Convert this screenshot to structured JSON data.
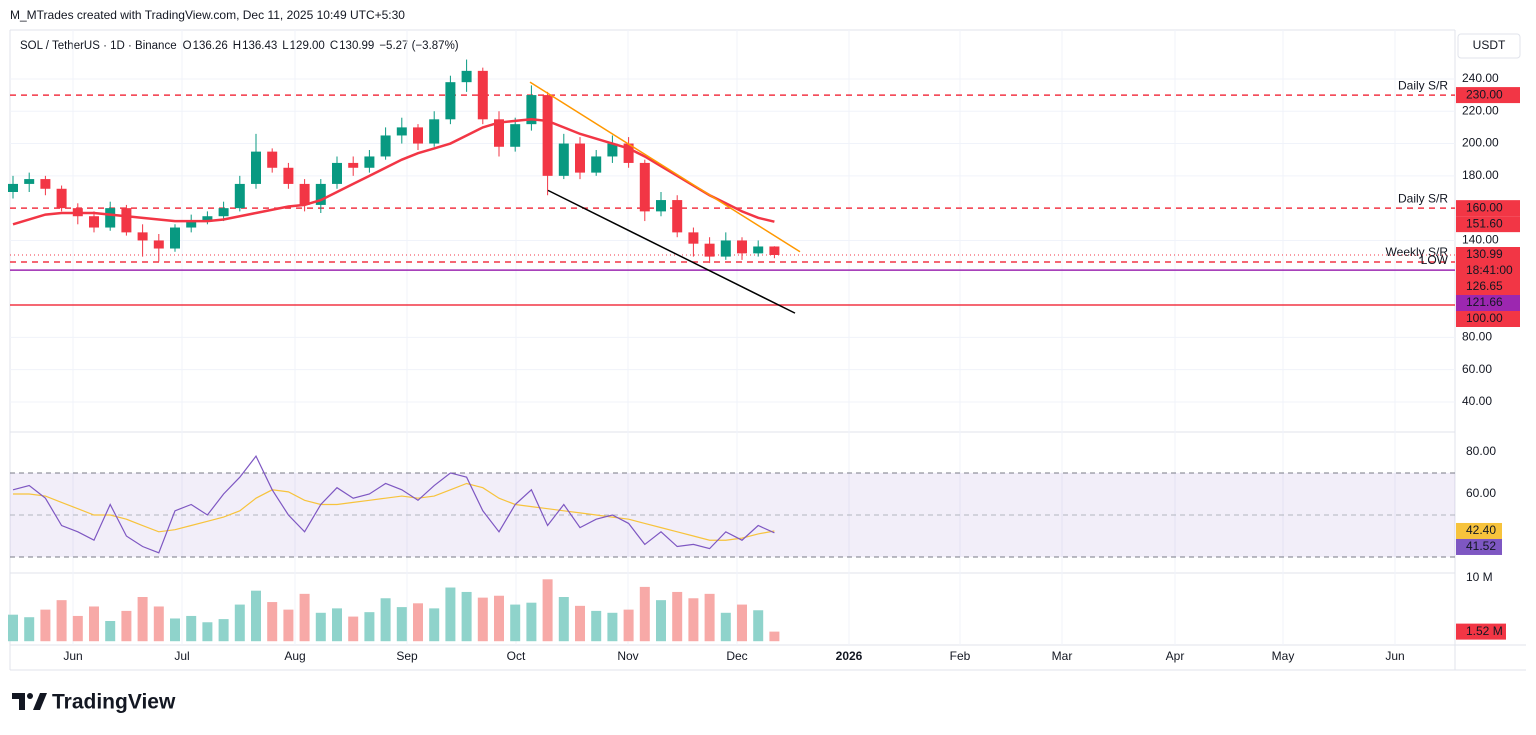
{
  "header": {
    "credit": "M_MTrades created with TradingView.com, Dec 11, 2025 10:49 UTC+5:30"
  },
  "legend": {
    "symbol": "SOL / TetherUS · 1D · Binance",
    "open_label": "O",
    "open": "136.26",
    "high_label": "H",
    "high": "136.43",
    "low_label": "L",
    "low": "129.00",
    "close_label": "C",
    "close": "130.99",
    "change": "−5.27 (−3.87%)"
  },
  "currency": "USDT",
  "footer": {
    "brand": "TradingView"
  },
  "chart_data": {
    "type": "candlestick",
    "up_color": "#089981",
    "down_color": "#f23645",
    "volume_up_color": "#8fd3cb",
    "volume_down_color": "#f7a9a7",
    "ylim": [
      21.4,
      270.3
    ],
    "yticks": [
      {
        "value": 240,
        "label": "240.00"
      },
      {
        "value": 220,
        "label": "220.00"
      },
      {
        "value": 200,
        "label": "200.00"
      },
      {
        "value": 180,
        "label": "180.00"
      },
      {
        "value": 140,
        "label": "140.00"
      },
      {
        "value": 80,
        "label": "80.00"
      },
      {
        "value": 60,
        "label": "60.00"
      },
      {
        "value": 40,
        "label": "40.00"
      }
    ],
    "x_labels": [
      "Jun",
      "Jul",
      "Aug",
      "Sep",
      "Oct",
      "Nov",
      "Dec",
      "2026",
      "Feb",
      "Mar",
      "Apr",
      "May",
      "Jun"
    ],
    "open": [
      170,
      175,
      178,
      172,
      160,
      155,
      148,
      160,
      145,
      140,
      135,
      148,
      152,
      155,
      160,
      175,
      195,
      185,
      175,
      162,
      175,
      188,
      185,
      192,
      205,
      210,
      200,
      215,
      238,
      245,
      215,
      198,
      212,
      230,
      180,
      200,
      182,
      192,
      200,
      188,
      158,
      165,
      145,
      138,
      130,
      140,
      132,
      136.26
    ],
    "high": [
      180,
      182,
      180,
      174,
      163,
      158,
      164,
      162,
      150,
      144,
      150,
      156,
      158,
      164,
      180,
      206,
      197,
      188,
      178,
      178,
      192,
      192,
      196,
      210,
      216,
      212,
      220,
      242,
      252,
      247,
      220,
      216,
      236,
      232,
      206,
      204,
      196,
      205,
      204,
      190,
      170,
      168,
      148,
      142,
      145,
      142,
      140,
      136.43
    ],
    "low": [
      166,
      170,
      168,
      158,
      150,
      145,
      146,
      143,
      130,
      127,
      133,
      145,
      150,
      152,
      158,
      172,
      182,
      172,
      158,
      157,
      172,
      180,
      182,
      190,
      200,
      196,
      198,
      212,
      232,
      212,
      192,
      195,
      208,
      168,
      178,
      178,
      180,
      188,
      185,
      152,
      155,
      142,
      130,
      126,
      128,
      128,
      130,
      129
    ],
    "close": [
      175,
      178,
      172,
      160,
      155,
      148,
      160,
      145,
      140,
      135,
      148,
      152,
      155,
      160,
      175,
      195,
      185,
      175,
      162,
      175,
      188,
      185,
      192,
      205,
      210,
      200,
      215,
      238,
      245,
      215,
      198,
      212,
      230,
      180,
      200,
      182,
      192,
      200,
      188,
      158,
      165,
      145,
      138,
      130,
      140,
      132,
      136.26,
      130.99
    ],
    "ma": {
      "color": "#f23645",
      "values": [
        150,
        153,
        156,
        157,
        157,
        157,
        156,
        155,
        154,
        153,
        152,
        152,
        152,
        153,
        155,
        157,
        159,
        161,
        162,
        165,
        170,
        175,
        180,
        185,
        190,
        194,
        197,
        200,
        205,
        210,
        213,
        214,
        215,
        214,
        210,
        206,
        203,
        200,
        197,
        192,
        186,
        180,
        174,
        168,
        163,
        158,
        154,
        151.6
      ]
    },
    "levels": [
      {
        "value": 230,
        "label": "Daily S/R",
        "color": "#f23645",
        "dashed": true
      },
      {
        "value": 160,
        "label": "Daily S/R",
        "color": "#f23645",
        "dashed": true
      },
      {
        "value": 126.65,
        "label": "Weekly S/R",
        "color": "#f23645",
        "dashed": true
      },
      {
        "value": 121.66,
        "label": "LOW",
        "color": "#9c27b0",
        "dashed": false
      },
      {
        "value": 100,
        "color": "#f23645",
        "dashed": false
      }
    ],
    "trendlines": [
      {
        "color": "#ff9800",
        "values": [
          238,
          133
        ]
      },
      {
        "color": "#000000",
        "values": [
          171,
          95
        ]
      }
    ],
    "price_tags": [
      {
        "value": 230,
        "label": "230.00",
        "color": "#f23645"
      },
      {
        "value": 160,
        "label": "160.00",
        "color": "#f23645"
      },
      {
        "value": 151.6,
        "label": "151.60",
        "color": "#f23645"
      },
      {
        "value": 130.99,
        "label": "130.99",
        "timer": "18:41:00",
        "color": "#f23645"
      },
      {
        "value": 126.65,
        "label": "126.65",
        "color": "#f23645"
      },
      {
        "value": 121.66,
        "label": "121.66",
        "color": "#9c27b0"
      },
      {
        "value": 100,
        "label": "100.00",
        "color": "#f23645"
      }
    ],
    "rsi": {
      "color": "#7e57c2",
      "ma_color": "#f7c33c",
      "ylim": [
        22.4,
        89.5
      ],
      "yticks": [
        {
          "value": 80,
          "label": "80.00"
        },
        {
          "value": 60,
          "label": "60.00"
        }
      ],
      "bands": [
        70,
        30
      ],
      "middle": 50,
      "values": [
        62,
        64,
        58,
        45,
        42,
        38,
        55,
        40,
        35,
        32,
        52,
        55,
        50,
        60,
        68,
        78,
        62,
        50,
        42,
        55,
        63,
        58,
        60,
        65,
        62,
        57,
        64,
        70,
        68,
        52,
        42,
        55,
        62,
        45,
        55,
        44,
        48,
        50,
        46,
        36,
        42,
        35,
        36,
        34,
        42,
        38,
        45,
        41.52
      ],
      "ma": [
        60,
        60,
        59,
        56,
        53,
        50,
        50,
        48,
        45,
        42,
        43,
        45,
        47,
        49,
        52,
        58,
        62,
        61,
        57,
        55,
        55,
        56,
        57,
        58,
        59,
        58,
        59,
        62,
        65,
        63,
        58,
        55,
        54,
        53,
        52,
        51,
        50,
        49,
        48,
        46,
        44,
        42,
        40,
        38,
        38,
        39,
        41,
        42.4
      ],
      "tags": [
        {
          "value": 42.4,
          "label": "42.40",
          "color": "#f7c33c"
        },
        {
          "value": 41.52,
          "label": "41.52",
          "color": "#7e57c2"
        }
      ]
    },
    "volume": {
      "ylim": [
        -600000,
        10800000
      ],
      "yticks": [
        {
          "value": 10000000,
          "label": "10 M"
        }
      ],
      "values": [
        4200000,
        3800000,
        5000000,
        6500000,
        4000000,
        5500000,
        3200000,
        4800000,
        7000000,
        5500000,
        3600000,
        4000000,
        3000000,
        3500000,
        5800000,
        8000000,
        6200000,
        5000000,
        7500000,
        4500000,
        5200000,
        3900000,
        4600000,
        6800000,
        5400000,
        6000000,
        5200000,
        8500000,
        7800000,
        6900000,
        7200000,
        5800000,
        6100000,
        9800000,
        7000000,
        5600000,
        4800000,
        4500000,
        5000000,
        8600000,
        6500000,
        7800000,
        6800000,
        7500000,
        4500000,
        5800000,
        4900000,
        1520000
      ],
      "tag": {
        "value": 1520000,
        "label": "1.52 M",
        "color": "#f23645"
      }
    }
  }
}
